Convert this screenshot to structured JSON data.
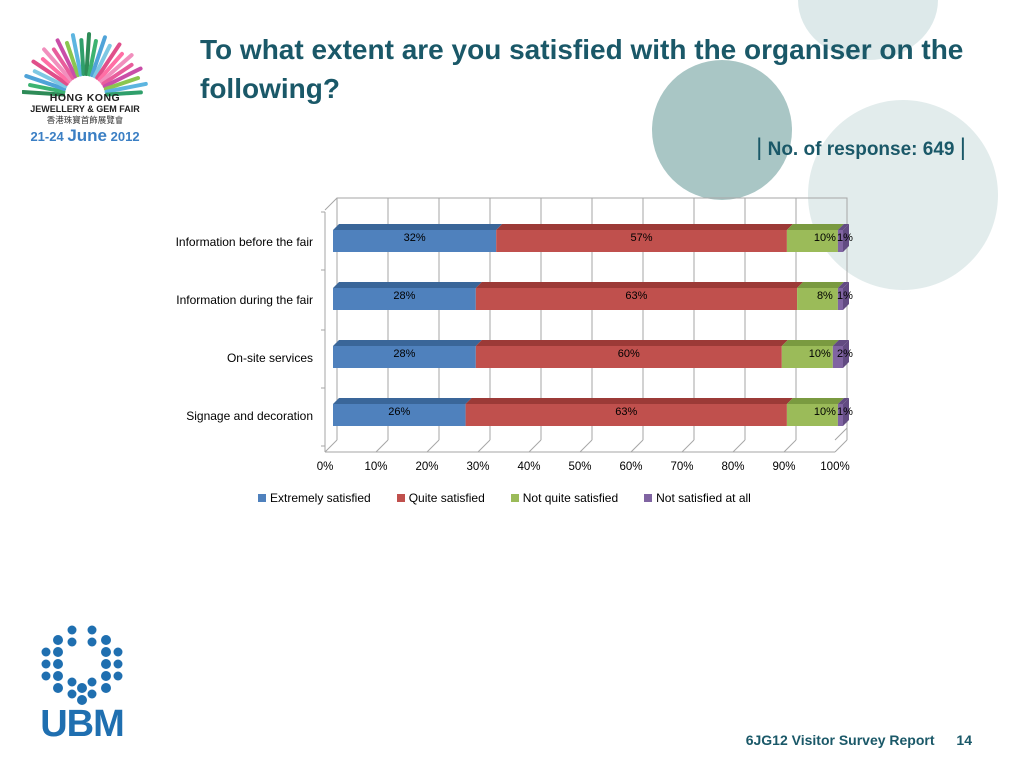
{
  "title": "To what extent are you satisfied with the organiser on the following?",
  "responses": "No. of response: 649",
  "fair_logo": {
    "line1": "HONG KONG",
    "line2": "JEWELLERY & GEM FAIR",
    "line3": "香港珠寶首飾展覽會",
    "date_prefix": "21-24",
    "date_month": "June",
    "date_year": "2012"
  },
  "ubm_logo": "UBM",
  "footer": {
    "report": "6JG12 Visitor Survey Report",
    "page": "14"
  },
  "colors": {
    "title": "#1a5868",
    "extremely": "#4f81bd",
    "quite": "#c0504d",
    "not_quite": "#9bbb59",
    "not_at_all": "#8064a2"
  },
  "chart_data": {
    "type": "bar",
    "orientation": "horizontal",
    "stacked": "100%",
    "categories": [
      "Information before the fair",
      "Information during the fair",
      "On-site services",
      "Signage and decoration"
    ],
    "series": [
      {
        "name": "Extremely satisfied",
        "values": [
          32,
          28,
          28,
          26
        ],
        "labels": [
          "32%",
          "28%",
          "28%",
          "26%"
        ]
      },
      {
        "name": "Quite satisfied",
        "values": [
          57,
          63,
          60,
          63
        ],
        "labels": [
          "57%",
          "63%",
          "60%",
          "63%"
        ]
      },
      {
        "name": "Not quite satisfied",
        "values": [
          10,
          8,
          10,
          10
        ],
        "labels": [
          "10%",
          "8%",
          "10%",
          "10%"
        ]
      },
      {
        "name": "Not satisfied at all",
        "values": [
          1,
          1,
          2,
          1
        ],
        "labels": [
          "1%",
          "1%",
          "2%",
          "1%"
        ]
      }
    ],
    "xticks": [
      "0%",
      "10%",
      "20%",
      "30%",
      "40%",
      "50%",
      "60%",
      "70%",
      "80%",
      "90%",
      "100%"
    ],
    "xlim": [
      0,
      100
    ],
    "grid": true,
    "legend_position": "bottom"
  }
}
